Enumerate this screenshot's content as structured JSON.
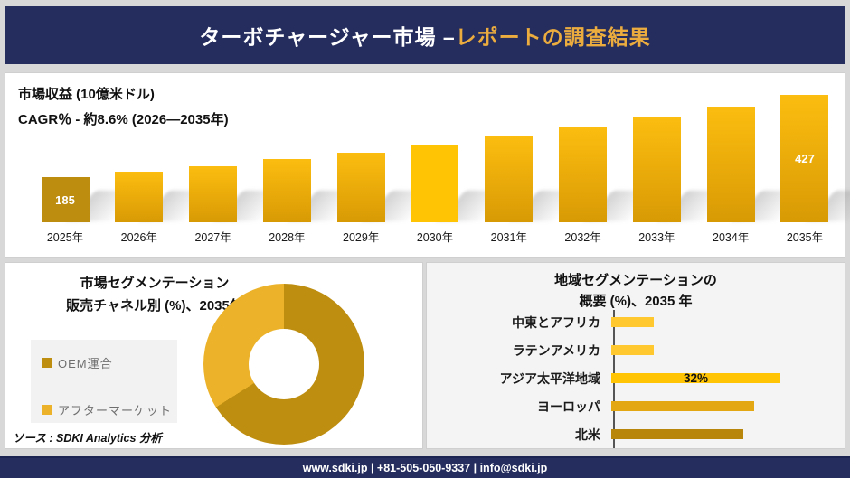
{
  "header": {
    "title_main": "ターボチャージャー市場 –",
    "title_accent": "レポートの調査結果"
  },
  "revenue": {
    "metric_label": "市場収益 (10億米ドル)",
    "cagr_label": "CAGR％ - 約8.6% (2026―2035年)"
  },
  "segmentation": {
    "title_line1": "市場セグメンテーション",
    "title_line2": "販売チャネル別 (%)、2035年",
    "source": "ソース : SDKI Analytics 分析"
  },
  "regions": {
    "title_line1": "地域セグメンテーションの",
    "title_line2": "概要 (%)、2035 年"
  },
  "footer": {
    "contact": "www.sdki.jp | +81-505-050-9337 | info@sdki.jp"
  },
  "colors": {
    "navy": "#252D5E",
    "title_accent": "#EDAD3E",
    "panel_border": "#cfcfcf"
  },
  "chart_data": [
    {
      "type": "bar",
      "title": "市場収益 (10億米ドル)",
      "subtitle": "CAGR％ - 約8.6% (2026―2035年)",
      "categories": [
        "2025年",
        "2026年",
        "2027年",
        "2028年",
        "2029年",
        "2030年",
        "2031年",
        "2032年",
        "2033年",
        "2034年",
        "2035年"
      ],
      "values": [
        185,
        201,
        218,
        237,
        257,
        280,
        304,
        331,
        360,
        392,
        427
      ],
      "data_labels": [
        "185",
        "",
        "",
        "",
        "",
        "",
        "",
        "",
        "",
        "",
        "427"
      ],
      "labeled_values": {
        "2025年": 185,
        "2035年": 427
      },
      "note": "Only 2025 (185) and 2035 (427) are printed on the chart; intermediate values estimated from ~8.6% CAGR",
      "ylim": [
        0,
        450
      ],
      "grid": false,
      "colors": {
        "first": "#BC8D0F",
        "default_top": "#FCBD10",
        "default_bottom": "#D89A04",
        "highlight": "#FFC403",
        "highlight_index": 5
      },
      "value_label_color": "#ffffff"
    },
    {
      "type": "pie",
      "donut": true,
      "title": "市場セグメンテーション 販売チャネル別 (%)、2035年",
      "labels": [
        "OEM運合",
        "アフターマーケット"
      ],
      "values": [
        66,
        34
      ],
      "note": "Percent split not printed; estimated from arc angles",
      "colors": [
        "#BE8E10",
        "#ECB32A"
      ],
      "legend_position": "left"
    },
    {
      "type": "bar",
      "orientation": "horizontal",
      "title": "地域セグメンテーションの概要 (%)、2035 年",
      "categories": [
        "中東とアフリカ",
        "ラテンアメリカ",
        "アジア太平洋地域",
        "ヨーロッパ",
        "北米"
      ],
      "values": [
        8,
        8,
        32,
        27,
        25
      ],
      "data_labels": [
        "",
        "",
        "32%",
        "",
        ""
      ],
      "note": "Only アジア太平洋地域 is labeled (32%); other values estimated from bar lengths",
      "xlim": [
        0,
        35
      ],
      "grid": false,
      "colors": [
        "#FFC82E",
        "#FFC82E",
        "#FFC403",
        "#E2A713",
        "#B8860B"
      ]
    }
  ]
}
